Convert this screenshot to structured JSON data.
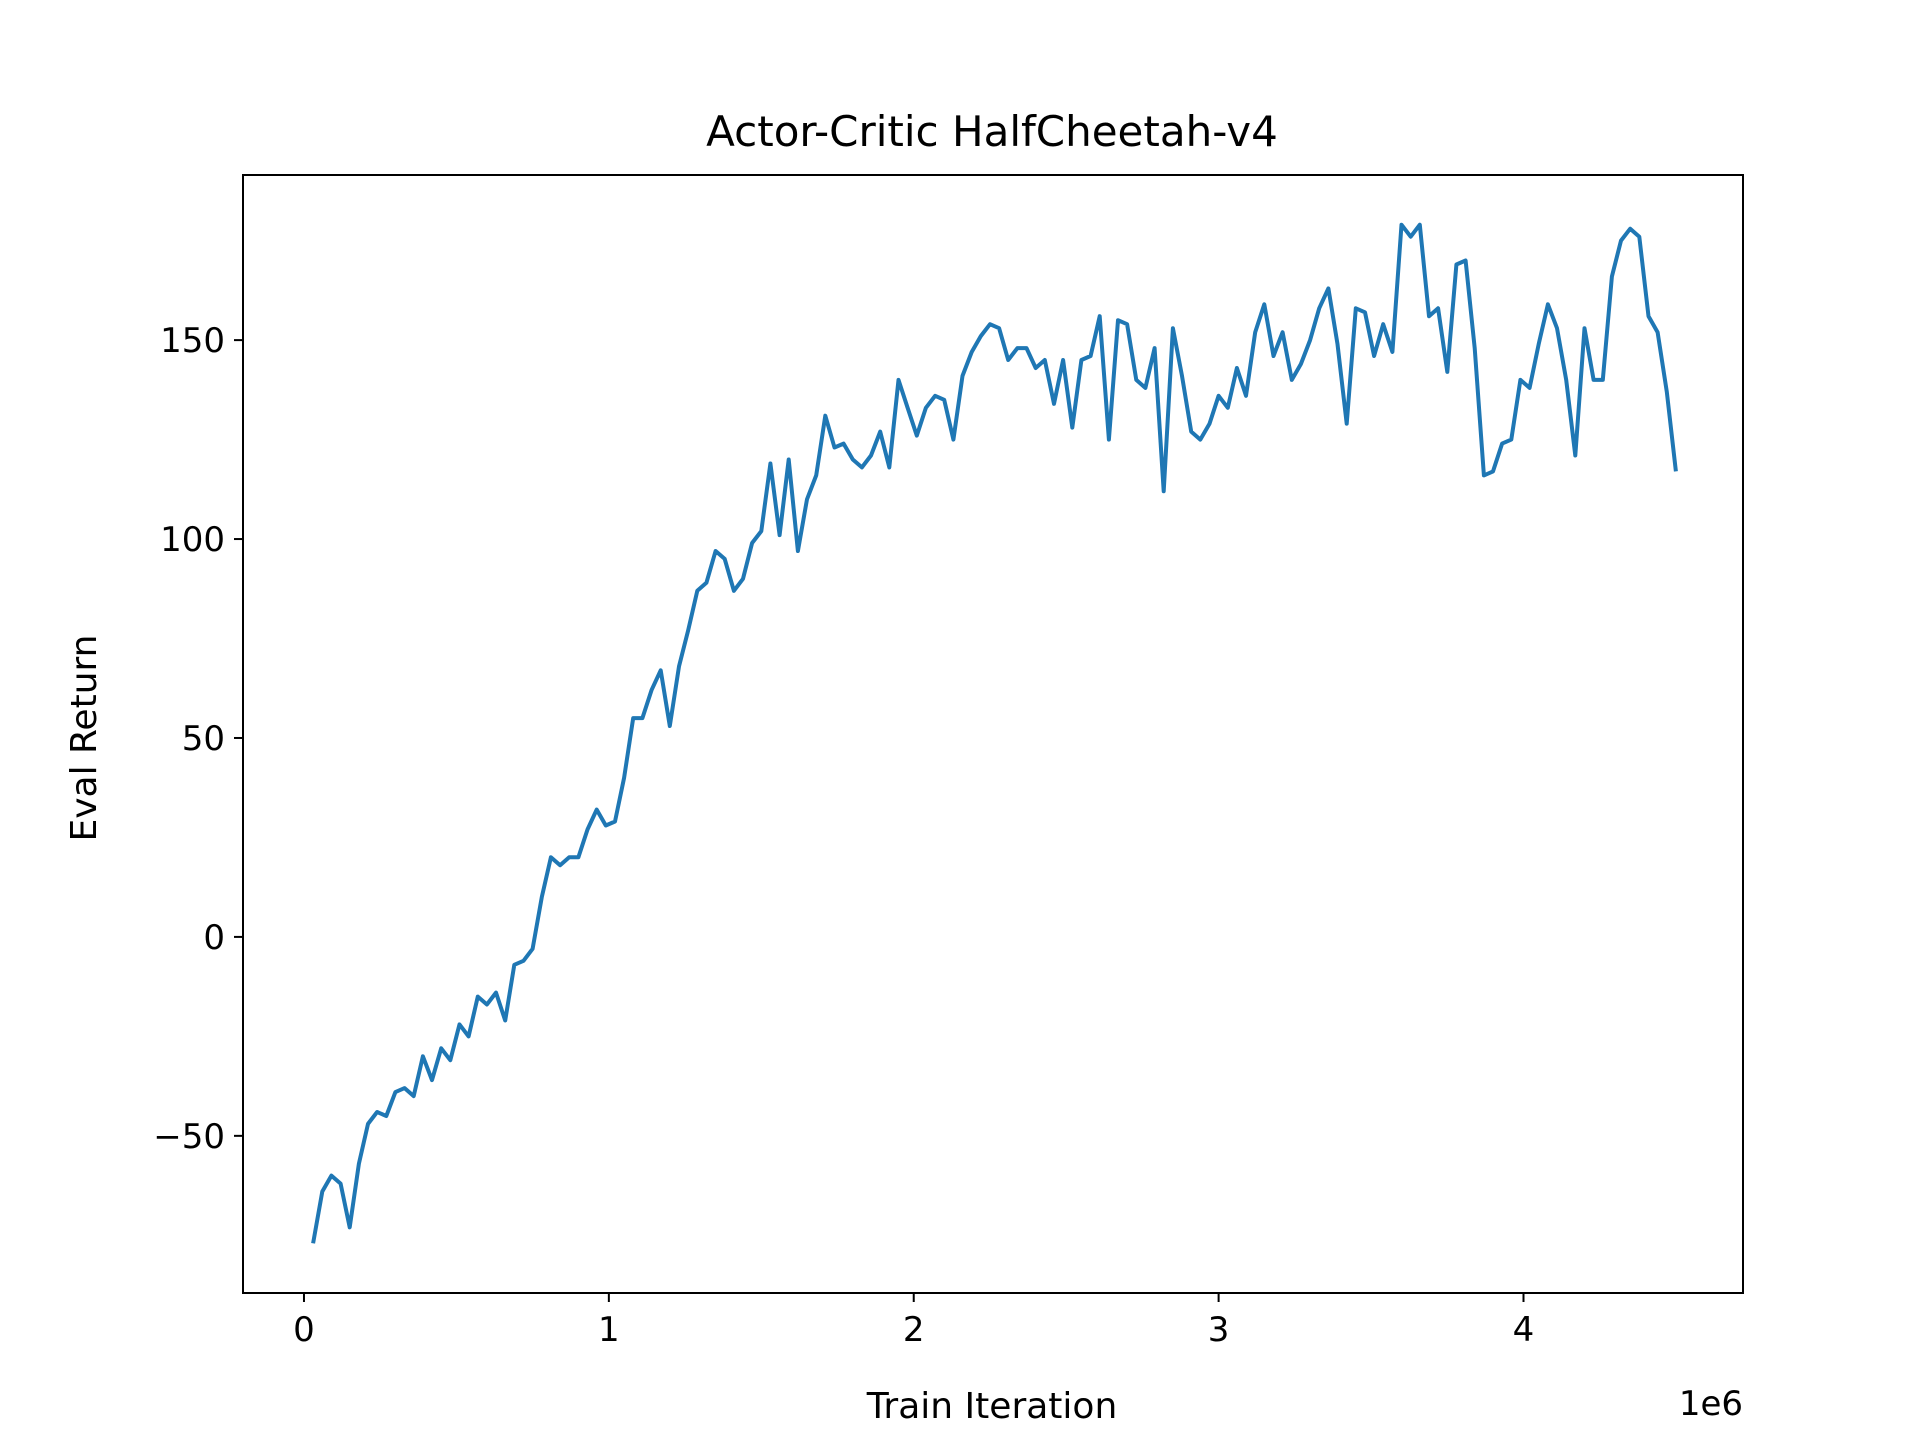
{
  "chart_data": {
    "type": "line",
    "title": "Actor-Critic HalfCheetah-v4",
    "xlabel": "Train Iteration",
    "ylabel": "Eval Return",
    "x_offset_label": "1e6",
    "xlim": [
      -0.2,
      4.72
    ],
    "ylim": [
      -89.5,
      191.5
    ],
    "xticks": [
      0,
      1,
      2,
      3,
      4
    ],
    "yticks": [
      -50,
      0,
      50,
      100,
      150
    ],
    "ytick_labels": [
      "−50",
      "0",
      "50",
      "100",
      "150"
    ],
    "grid": false,
    "line_color": "#1f77b4",
    "series": [
      {
        "x": [
          0.03,
          0.06,
          0.09,
          0.12,
          0.15,
          0.18,
          0.21,
          0.24,
          0.27,
          0.3,
          0.33,
          0.36,
          0.39,
          0.42,
          0.45,
          0.48,
          0.51,
          0.54,
          0.57,
          0.6,
          0.63,
          0.66,
          0.69,
          0.72,
          0.75,
          0.78,
          0.81,
          0.84,
          0.87,
          0.9,
          0.93,
          0.96,
          0.99,
          1.02,
          1.05,
          1.08,
          1.11,
          1.14,
          1.17,
          1.2,
          1.23,
          1.26,
          1.29,
          1.32,
          1.35,
          1.38,
          1.41,
          1.44,
          1.47,
          1.5,
          1.53,
          1.56,
          1.59,
          1.62,
          1.65,
          1.68,
          1.71,
          1.74,
          1.77,
          1.8,
          1.83,
          1.86,
          1.89,
          1.92,
          1.95,
          1.98,
          2.01,
          2.04,
          2.07,
          2.1,
          2.13,
          2.16,
          2.19,
          2.22,
          2.25,
          2.28,
          2.31,
          2.34,
          2.37,
          2.4,
          2.43,
          2.46,
          2.49,
          2.52,
          2.55,
          2.58,
          2.61,
          2.64,
          2.67,
          2.7,
          2.73,
          2.76,
          2.79,
          2.82,
          2.85,
          2.88,
          2.91,
          2.94,
          2.97,
          3.0,
          3.03,
          3.06,
          3.09,
          3.12,
          3.15,
          3.18,
          3.21,
          3.24,
          3.27,
          3.3,
          3.33,
          3.36,
          3.39,
          3.42,
          3.45,
          3.48,
          3.51,
          3.54,
          3.57,
          3.6,
          3.63,
          3.66,
          3.69,
          3.72,
          3.75,
          3.78,
          3.81,
          3.84,
          3.87,
          3.9,
          3.93,
          3.96,
          3.99,
          4.02,
          4.05,
          4.08,
          4.11,
          4.14,
          4.17,
          4.2,
          4.23,
          4.26,
          4.29,
          4.32,
          4.35,
          4.38,
          4.41,
          4.44,
          4.47,
          4.5
        ],
        "y": [
          -77,
          -64,
          -60,
          -62,
          -73,
          -57,
          -47,
          -44,
          -45,
          -39,
          -38,
          -40,
          -30,
          -36,
          -28,
          -31,
          -22,
          -25,
          -15,
          -17,
          -14,
          -21,
          -7,
          -6,
          -3,
          10,
          20,
          18,
          20,
          20,
          27,
          32,
          28,
          29,
          40,
          55,
          55,
          62,
          67,
          53,
          68,
          77,
          87,
          89,
          97,
          95,
          87,
          90,
          99,
          102,
          119,
          101,
          120,
          97,
          110,
          116,
          131,
          123,
          124,
          120,
          118,
          121,
          127,
          118,
          140,
          133,
          126,
          133,
          136,
          135,
          125,
          141,
          147,
          151,
          154,
          153,
          145,
          148,
          148,
          143,
          145,
          134,
          145,
          128,
          145,
          146,
          156,
          125,
          155,
          154,
          140,
          138,
          148,
          112,
          153,
          141,
          127,
          125,
          129,
          136,
          133,
          143,
          136,
          152,
          159,
          146,
          152,
          140,
          144,
          150,
          158,
          163,
          149,
          129,
          158,
          157,
          146,
          154,
          147,
          179,
          176,
          179,
          156,
          158,
          142,
          169,
          170,
          148,
          116,
          117,
          124,
          125,
          140,
          138,
          149,
          159,
          153,
          140,
          121,
          153,
          140,
          140,
          166,
          175,
          178,
          176,
          156,
          152,
          137,
          117
        ]
      }
    ]
  }
}
